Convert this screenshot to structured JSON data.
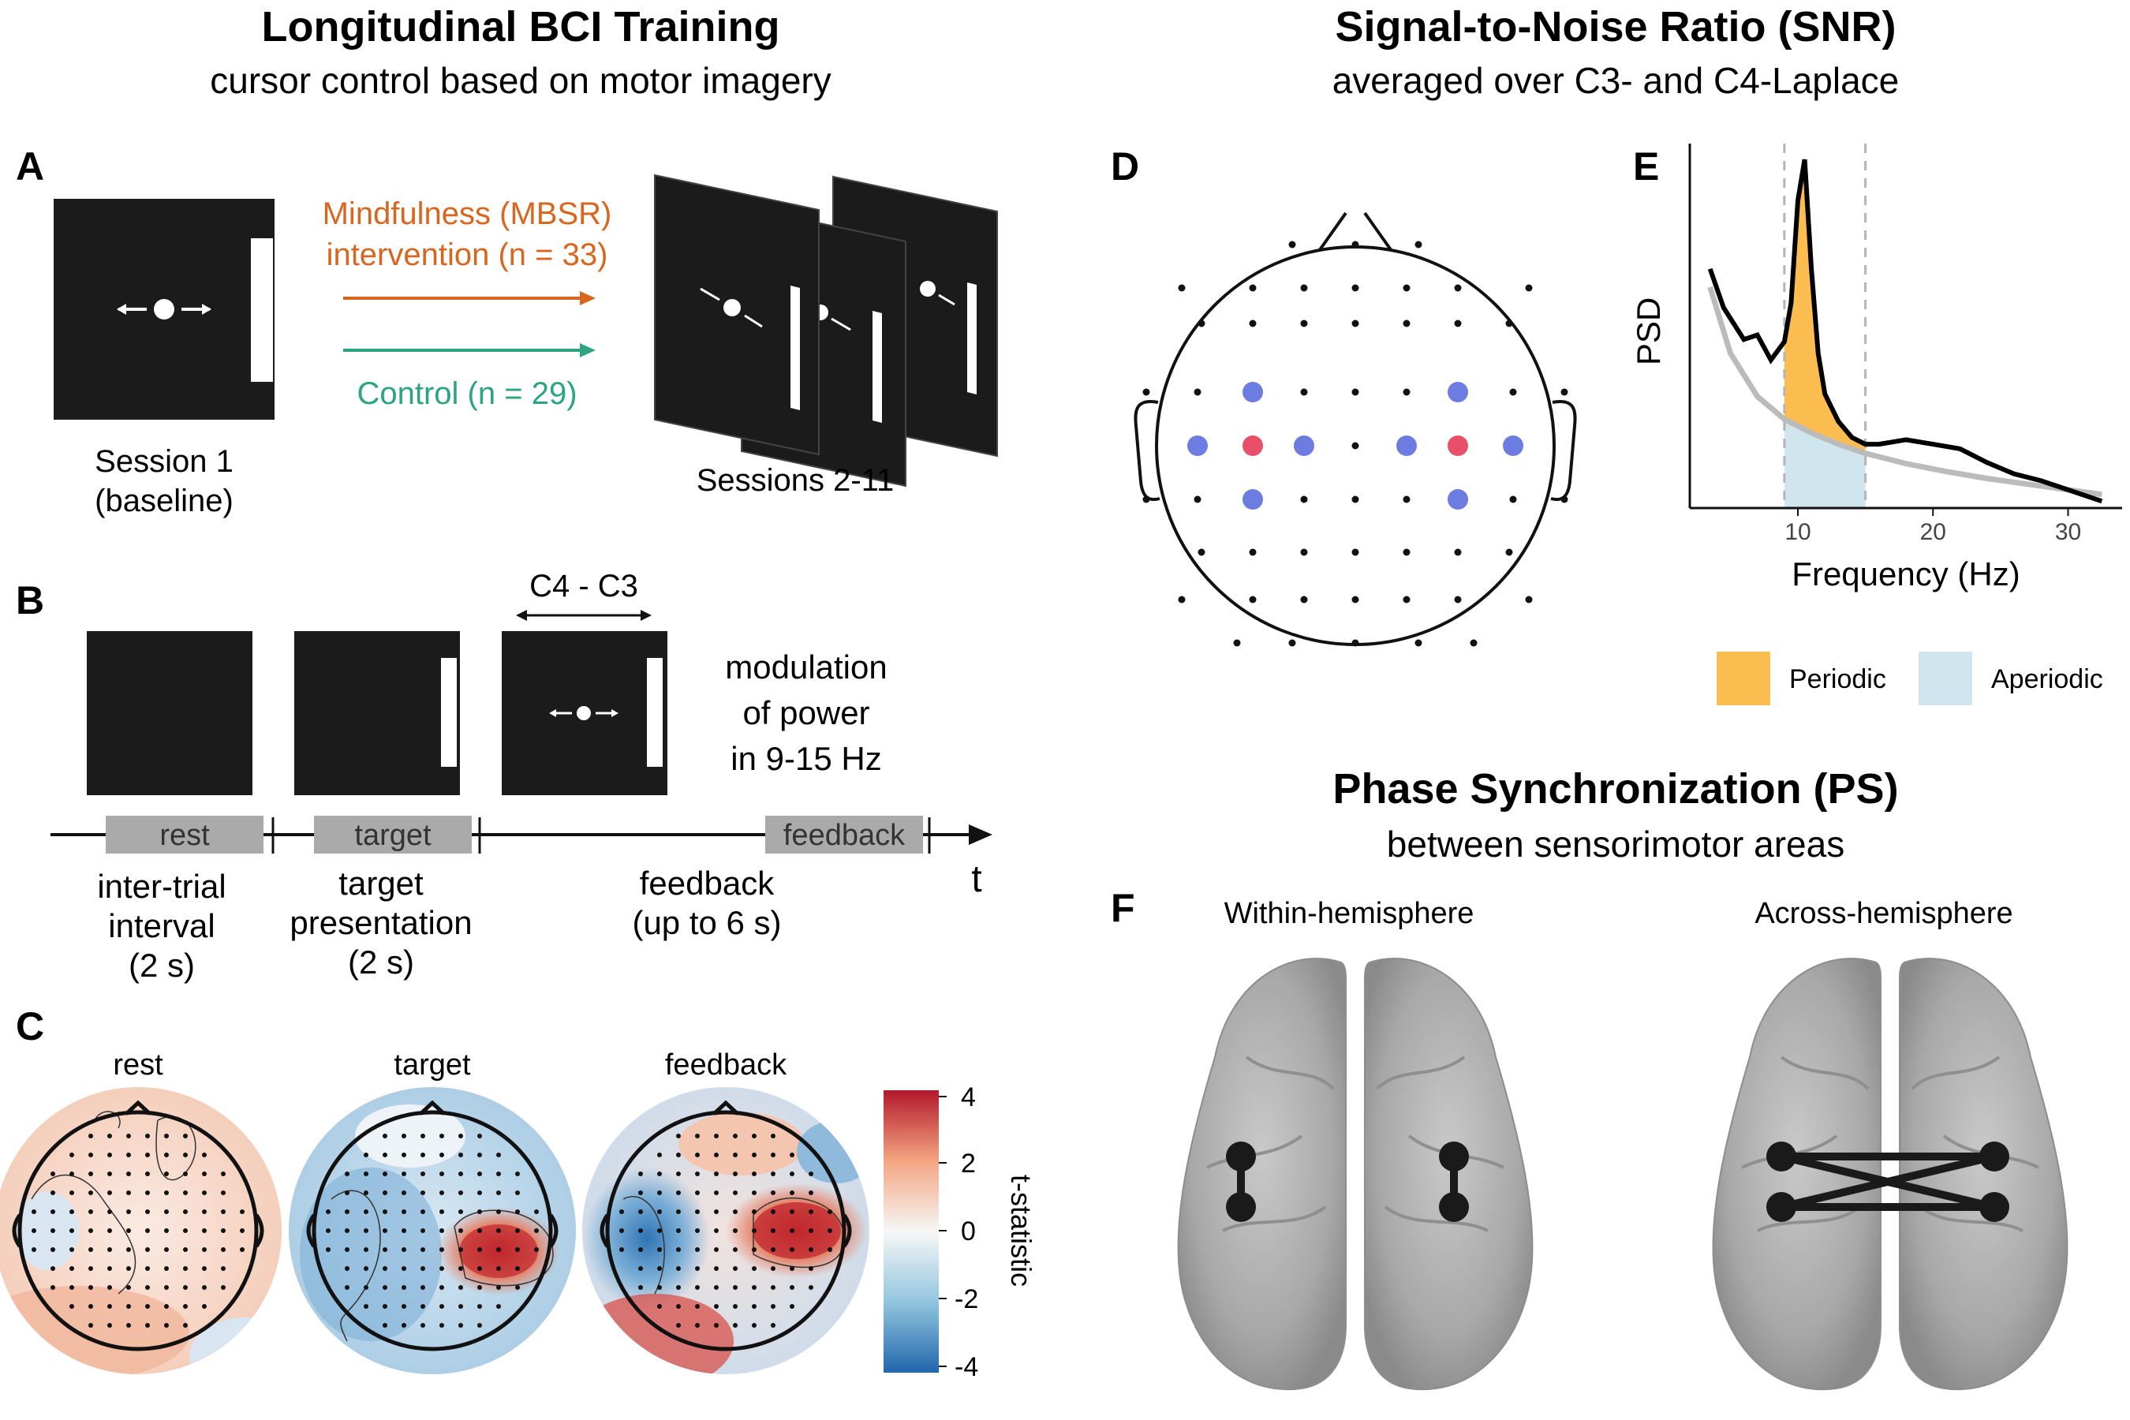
{
  "left_header": {
    "title": "Longitudinal BCI Training",
    "subtitle": "cursor control based on motor imagery"
  },
  "right_header": {
    "title": "Signal-to-Noise Ratio (SNR)",
    "subtitle": "averaged over C3- and C4-Laplace"
  },
  "ps_header": {
    "title": "Phase Synchronization (PS)",
    "subtitle": "between sensorimotor areas"
  },
  "panel_letters": {
    "A": "A",
    "B": "B",
    "C": "C",
    "D": "D",
    "E": "E",
    "F": "F"
  },
  "panel_a": {
    "intervention_line1": "Mindfulness (MBSR)",
    "intervention_line2": "intervention (n = 33)",
    "control": "Control (n = 29)",
    "session1_line1": "Session 1",
    "session1_line2": "(baseline)",
    "sessions_rest": "Sessions 2-11",
    "colors": {
      "intervention": "#d9661f",
      "control": "#2aa57f"
    }
  },
  "panel_b": {
    "c4c3": "C4 - C3",
    "modulation_line1": "modulation",
    "modulation_line2": "of power",
    "modulation_line3": "in 9-15 Hz",
    "phases": [
      {
        "tag": "rest",
        "desc": [
          "inter-trial",
          "interval",
          "(2 s)"
        ]
      },
      {
        "tag": "target",
        "desc": [
          "target",
          "presentation",
          "(2 s)"
        ]
      },
      {
        "tag": "feedback",
        "desc": [
          "feedback",
          "(up to 6 s)"
        ]
      }
    ],
    "time_label": "t"
  },
  "panel_c": {
    "titles": [
      "rest",
      "target",
      "feedback"
    ],
    "colorbar": {
      "label": "t-statistic",
      "ticks": [
        "4",
        "2",
        "0",
        "-2",
        "-4"
      ],
      "colors": [
        "#b2182b",
        "#f4a582",
        "#f7f7f7",
        "#92c5de",
        "#2166ac"
      ]
    }
  },
  "panel_d": {
    "colors": {
      "center": "#e8506a",
      "neighbor": "#6c7ce0"
    }
  },
  "chart_data": {
    "type": "line",
    "title": "",
    "xlabel": "Frequency (Hz)",
    "ylabel": "PSD",
    "xlim": [
      2,
      34
    ],
    "xticks": [
      "10",
      "20",
      "30"
    ],
    "band": [
      9,
      15
    ],
    "legend": [
      "Periodic",
      "Aperiodic"
    ],
    "legend_colors": [
      "#fbbd4f",
      "#cfe6ee"
    ],
    "series": [
      {
        "color": "#000000",
        "x": [
          3.5,
          4.5,
          6,
          7,
          8,
          9,
          9.5,
          10,
          10.5,
          11,
          11.5,
          12,
          13,
          14,
          15,
          16,
          18,
          20,
          22,
          24,
          26,
          28,
          30,
          32.5
        ],
        "y": [
          10.5,
          8.8,
          7.4,
          7.6,
          6.5,
          7.3,
          9.0,
          13.5,
          15.3,
          10.5,
          6.8,
          5.0,
          3.8,
          3.1,
          2.8,
          2.8,
          3.0,
          2.8,
          2.6,
          2.0,
          1.5,
          1.2,
          0.8,
          0.3
        ]
      },
      {
        "color": "#bbbbbb",
        "x": [
          3.5,
          5,
          7,
          9,
          11,
          13,
          15,
          18,
          21,
          24,
          27,
          30,
          32.5
        ],
        "y": [
          9.7,
          6.8,
          4.9,
          3.9,
          3.3,
          2.8,
          2.4,
          1.95,
          1.6,
          1.3,
          1.05,
          0.8,
          0.6
        ]
      }
    ]
  },
  "panel_f": {
    "within": "Within-hemisphere",
    "across": "Across-hemisphere"
  }
}
